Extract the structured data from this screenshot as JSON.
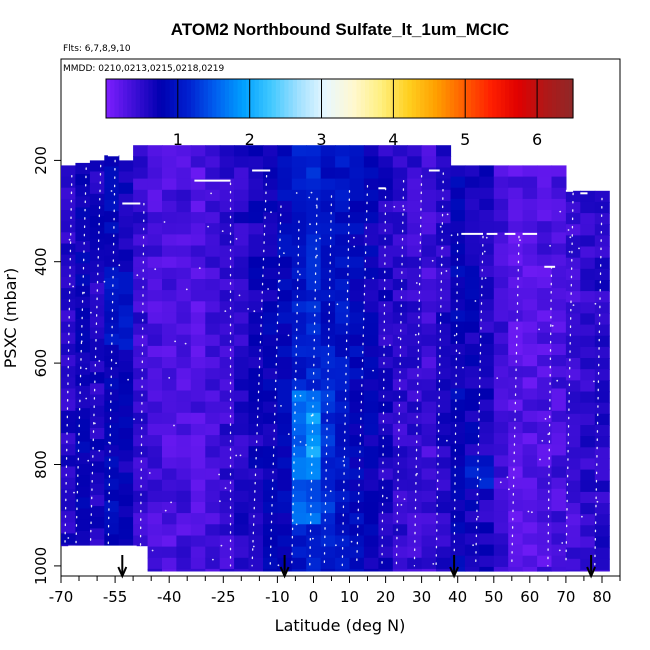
{
  "chart_data": {
    "type": "heatmap",
    "title": "ATOM2 Northbound Sulfate_lt_1um_MCIC",
    "flights_label": "Flts: 6,7,8,9,10",
    "mmdd_label": "MMDD: 0210,0213,0215,0218,0219",
    "xlabel": "Latitude (deg N)",
    "ylabel": "PSXC (mbar)",
    "xlim": [
      -70,
      85
    ],
    "ylim": [
      1020,
      0
    ],
    "x_ticks": [
      -70,
      -55,
      -40,
      -25,
      -10,
      0,
      10,
      20,
      30,
      40,
      50,
      60,
      70,
      80
    ],
    "x_tick_labels": [
      "-70",
      "-55",
      "-40",
      "-25",
      "-10",
      "0",
      "10",
      "20",
      "30",
      "40",
      "50",
      "60",
      "70",
      "80"
    ],
    "x_minor_ticks": [
      -65,
      -60,
      -50,
      -45,
      -35,
      -30,
      -20,
      -15,
      -5,
      5,
      15,
      25,
      35,
      45,
      55,
      65,
      75,
      85
    ],
    "y_ticks": [
      200,
      400,
      600,
      800,
      1000
    ],
    "y_tick_labels": [
      "200",
      "400",
      "600",
      "800",
      "1000"
    ],
    "colorbar": {
      "range": [
        0,
        6.5
      ],
      "ticks": [
        1,
        2,
        3,
        4,
        5,
        6
      ],
      "tick_labels": [
        "1",
        "2",
        "3",
        "4",
        "5",
        "6"
      ],
      "colors": [
        "#7f1fff",
        "#3f0fd8",
        "#0000b0",
        "#0020d0",
        "#0060f0",
        "#00a0ff",
        "#40c8ff",
        "#a0e0ff",
        "#e8f8ff",
        "#fff8d0",
        "#fff080",
        "#ffd020",
        "#ffa000",
        "#ff6000",
        "#ff2000",
        "#e00000",
        "#b01818",
        "#902828"
      ]
    },
    "field": {
      "columns": [
        {
          "lat": -68,
          "top": 210,
          "bottom": 960,
          "value": 0.55
        },
        {
          "lat": -64,
          "top": 205,
          "bottom": 960,
          "value": 0.75
        },
        {
          "lat": -60,
          "top": 200,
          "bottom": 960,
          "value": 0.6
        },
        {
          "lat": -56,
          "top": 190,
          "bottom": 960,
          "value": 0.85
        },
        {
          "lat": -52,
          "top": 200,
          "bottom": 960,
          "value": 0.7
        },
        {
          "lat": -48,
          "top": 170,
          "bottom": 960,
          "value": 0.45
        },
        {
          "lat": -44,
          "top": 170,
          "bottom": 1010,
          "value": 0.35
        },
        {
          "lat": -40,
          "top": 170,
          "bottom": 1010,
          "value": 0.3
        },
        {
          "lat": -36,
          "top": 170,
          "bottom": 1010,
          "value": 0.35
        },
        {
          "lat": -32,
          "top": 170,
          "bottom": 1010,
          "value": 0.3
        },
        {
          "lat": -28,
          "top": 170,
          "bottom": 1010,
          "value": 0.4
        },
        {
          "lat": -24,
          "top": 170,
          "bottom": 1010,
          "value": 0.45
        },
        {
          "lat": -20,
          "top": 170,
          "bottom": 1010,
          "value": 0.55
        },
        {
          "lat": -16,
          "top": 170,
          "bottom": 1010,
          "value": 0.65
        },
        {
          "lat": -12,
          "top": 170,
          "bottom": 1010,
          "value": 0.75
        },
        {
          "lat": -8,
          "top": 170,
          "bottom": 1010,
          "value": 0.85
        },
        {
          "lat": -4,
          "top": 170,
          "bottom": 1010,
          "value": 1.05
        },
        {
          "lat": 0,
          "top": 170,
          "bottom": 1010,
          "value": 1.15
        },
        {
          "lat": 4,
          "top": 170,
          "bottom": 1010,
          "value": 1.0
        },
        {
          "lat": 8,
          "top": 170,
          "bottom": 1010,
          "value": 1.0
        },
        {
          "lat": 12,
          "top": 170,
          "bottom": 1010,
          "value": 0.85
        },
        {
          "lat": 16,
          "top": 170,
          "bottom": 1010,
          "value": 0.75
        },
        {
          "lat": 20,
          "top": 170,
          "bottom": 1010,
          "value": 0.6
        },
        {
          "lat": 24,
          "top": 170,
          "bottom": 1010,
          "value": 0.5
        },
        {
          "lat": 28,
          "top": 170,
          "bottom": 1010,
          "value": 0.45
        },
        {
          "lat": 32,
          "top": 170,
          "bottom": 1010,
          "value": 0.4
        },
        {
          "lat": 36,
          "top": 170,
          "bottom": 1010,
          "value": 0.55
        },
        {
          "lat": 40,
          "top": 210,
          "bottom": 1010,
          "value": 0.8
        },
        {
          "lat": 44,
          "top": 210,
          "bottom": 1010,
          "value": 0.7
        },
        {
          "lat": 48,
          "top": 210,
          "bottom": 1010,
          "value": 0.6
        },
        {
          "lat": 52,
          "top": 210,
          "bottom": 1010,
          "value": 0.4
        },
        {
          "lat": 56,
          "top": 210,
          "bottom": 1010,
          "value": 0.25
        },
        {
          "lat": 60,
          "top": 210,
          "bottom": 1010,
          "value": 0.25
        },
        {
          "lat": 64,
          "top": 210,
          "bottom": 1010,
          "value": 0.3
        },
        {
          "lat": 68,
          "top": 210,
          "bottom": 1010,
          "value": 0.35
        },
        {
          "lat": 72,
          "top": 260,
          "bottom": 1010,
          "value": 0.4
        },
        {
          "lat": 76,
          "top": 260,
          "bottom": 1010,
          "value": 0.5
        },
        {
          "lat": 80,
          "top": 260,
          "bottom": 1010,
          "value": 0.55
        }
      ],
      "hotspots": [
        {
          "lat": -2,
          "p_min": 650,
          "p_max": 900,
          "value": 1.7
        },
        {
          "lat": 0,
          "p_min": 700,
          "p_max": 820,
          "value": 2.0
        },
        {
          "lat": 4,
          "p_min": 560,
          "p_max": 960,
          "value": 1.3
        },
        {
          "lat": 46,
          "p_min": 780,
          "p_max": 840,
          "value": 1.2
        },
        {
          "lat": -54,
          "p_min": 420,
          "p_max": 560,
          "value": 1.1
        }
      ]
    },
    "level_segments": [
      {
        "lat_start": -53,
        "lat_end": -48,
        "pressure": 285
      },
      {
        "lat_start": -33,
        "lat_end": -23,
        "pressure": 240
      },
      {
        "lat_start": -17,
        "lat_end": -12,
        "pressure": 220
      },
      {
        "lat_start": -57,
        "lat_end": -54,
        "pressure": 190
      },
      {
        "lat_start": 18,
        "lat_end": 20,
        "pressure": 255
      },
      {
        "lat_start": 32,
        "lat_end": 35,
        "pressure": 220
      },
      {
        "lat_start": 41,
        "lat_end": 47,
        "pressure": 345
      },
      {
        "lat_start": 48,
        "lat_end": 51,
        "pressure": 345
      },
      {
        "lat_start": 53,
        "lat_end": 56,
        "pressure": 345
      },
      {
        "lat_start": 58,
        "lat_end": 62,
        "pressure": 345
      },
      {
        "lat_start": 64,
        "lat_end": 67,
        "pressure": 410
      },
      {
        "lat_start": 70,
        "lat_end": 72,
        "pressure": 260
      },
      {
        "lat_start": 74,
        "lat_end": 76,
        "pressure": 265
      }
    ],
    "flight_tracks": [
      {
        "lat_top": -67,
        "lat_bottom": -69,
        "p_top": 230
      },
      {
        "lat_top": -63,
        "lat_bottom": -66,
        "p_top": 215
      },
      {
        "lat_top": -59,
        "lat_bottom": -62,
        "p_top": 210
      },
      {
        "lat_top": -55,
        "lat_bottom": -57,
        "p_top": 200
      },
      {
        "lat_top": -47,
        "lat_bottom": -48,
        "p_top": 285
      },
      {
        "lat_top": -23,
        "lat_bottom": -23,
        "p_top": 245
      },
      {
        "lat_top": -13,
        "lat_bottom": -17,
        "p_top": 230
      },
      {
        "lat_top": -9,
        "lat_bottom": -12,
        "p_top": 290
      },
      {
        "lat_top": -4,
        "lat_bottom": -6,
        "p_top": 320
      },
      {
        "lat_top": 1,
        "lat_bottom": -1,
        "p_top": 275
      },
      {
        "lat_top": 5,
        "lat_bottom": 3,
        "p_top": 270
      },
      {
        "lat_top": 10,
        "lat_bottom": 8,
        "p_top": 260
      },
      {
        "lat_top": 15,
        "lat_bottom": 12,
        "p_top": 250
      },
      {
        "lat_top": 20,
        "lat_bottom": 19,
        "p_top": 255
      },
      {
        "lat_top": 25,
        "lat_bottom": 23,
        "p_top": 240
      },
      {
        "lat_top": 30,
        "lat_bottom": 28,
        "p_top": 230
      },
      {
        "lat_top": 36,
        "lat_bottom": 34,
        "p_top": 225
      },
      {
        "lat_top": 40,
        "lat_bottom": 39,
        "p_top": 345
      },
      {
        "lat_top": 47,
        "lat_bottom": 45,
        "p_top": 350
      },
      {
        "lat_top": 57,
        "lat_bottom": 55,
        "p_top": 350
      },
      {
        "lat_top": 66,
        "lat_bottom": 65,
        "p_top": 410
      },
      {
        "lat_top": 72,
        "lat_bottom": 70,
        "p_top": 265
      },
      {
        "lat_top": 80,
        "lat_bottom": 78,
        "p_top": 275
      }
    ],
    "arrows": [
      {
        "lat": -53
      },
      {
        "lat": -8
      },
      {
        "lat": 39
      },
      {
        "lat": 77
      }
    ],
    "blank_region": {
      "lat_start": -68,
      "lat_end": -49,
      "p_min": 960,
      "p_max": 1010
    }
  }
}
